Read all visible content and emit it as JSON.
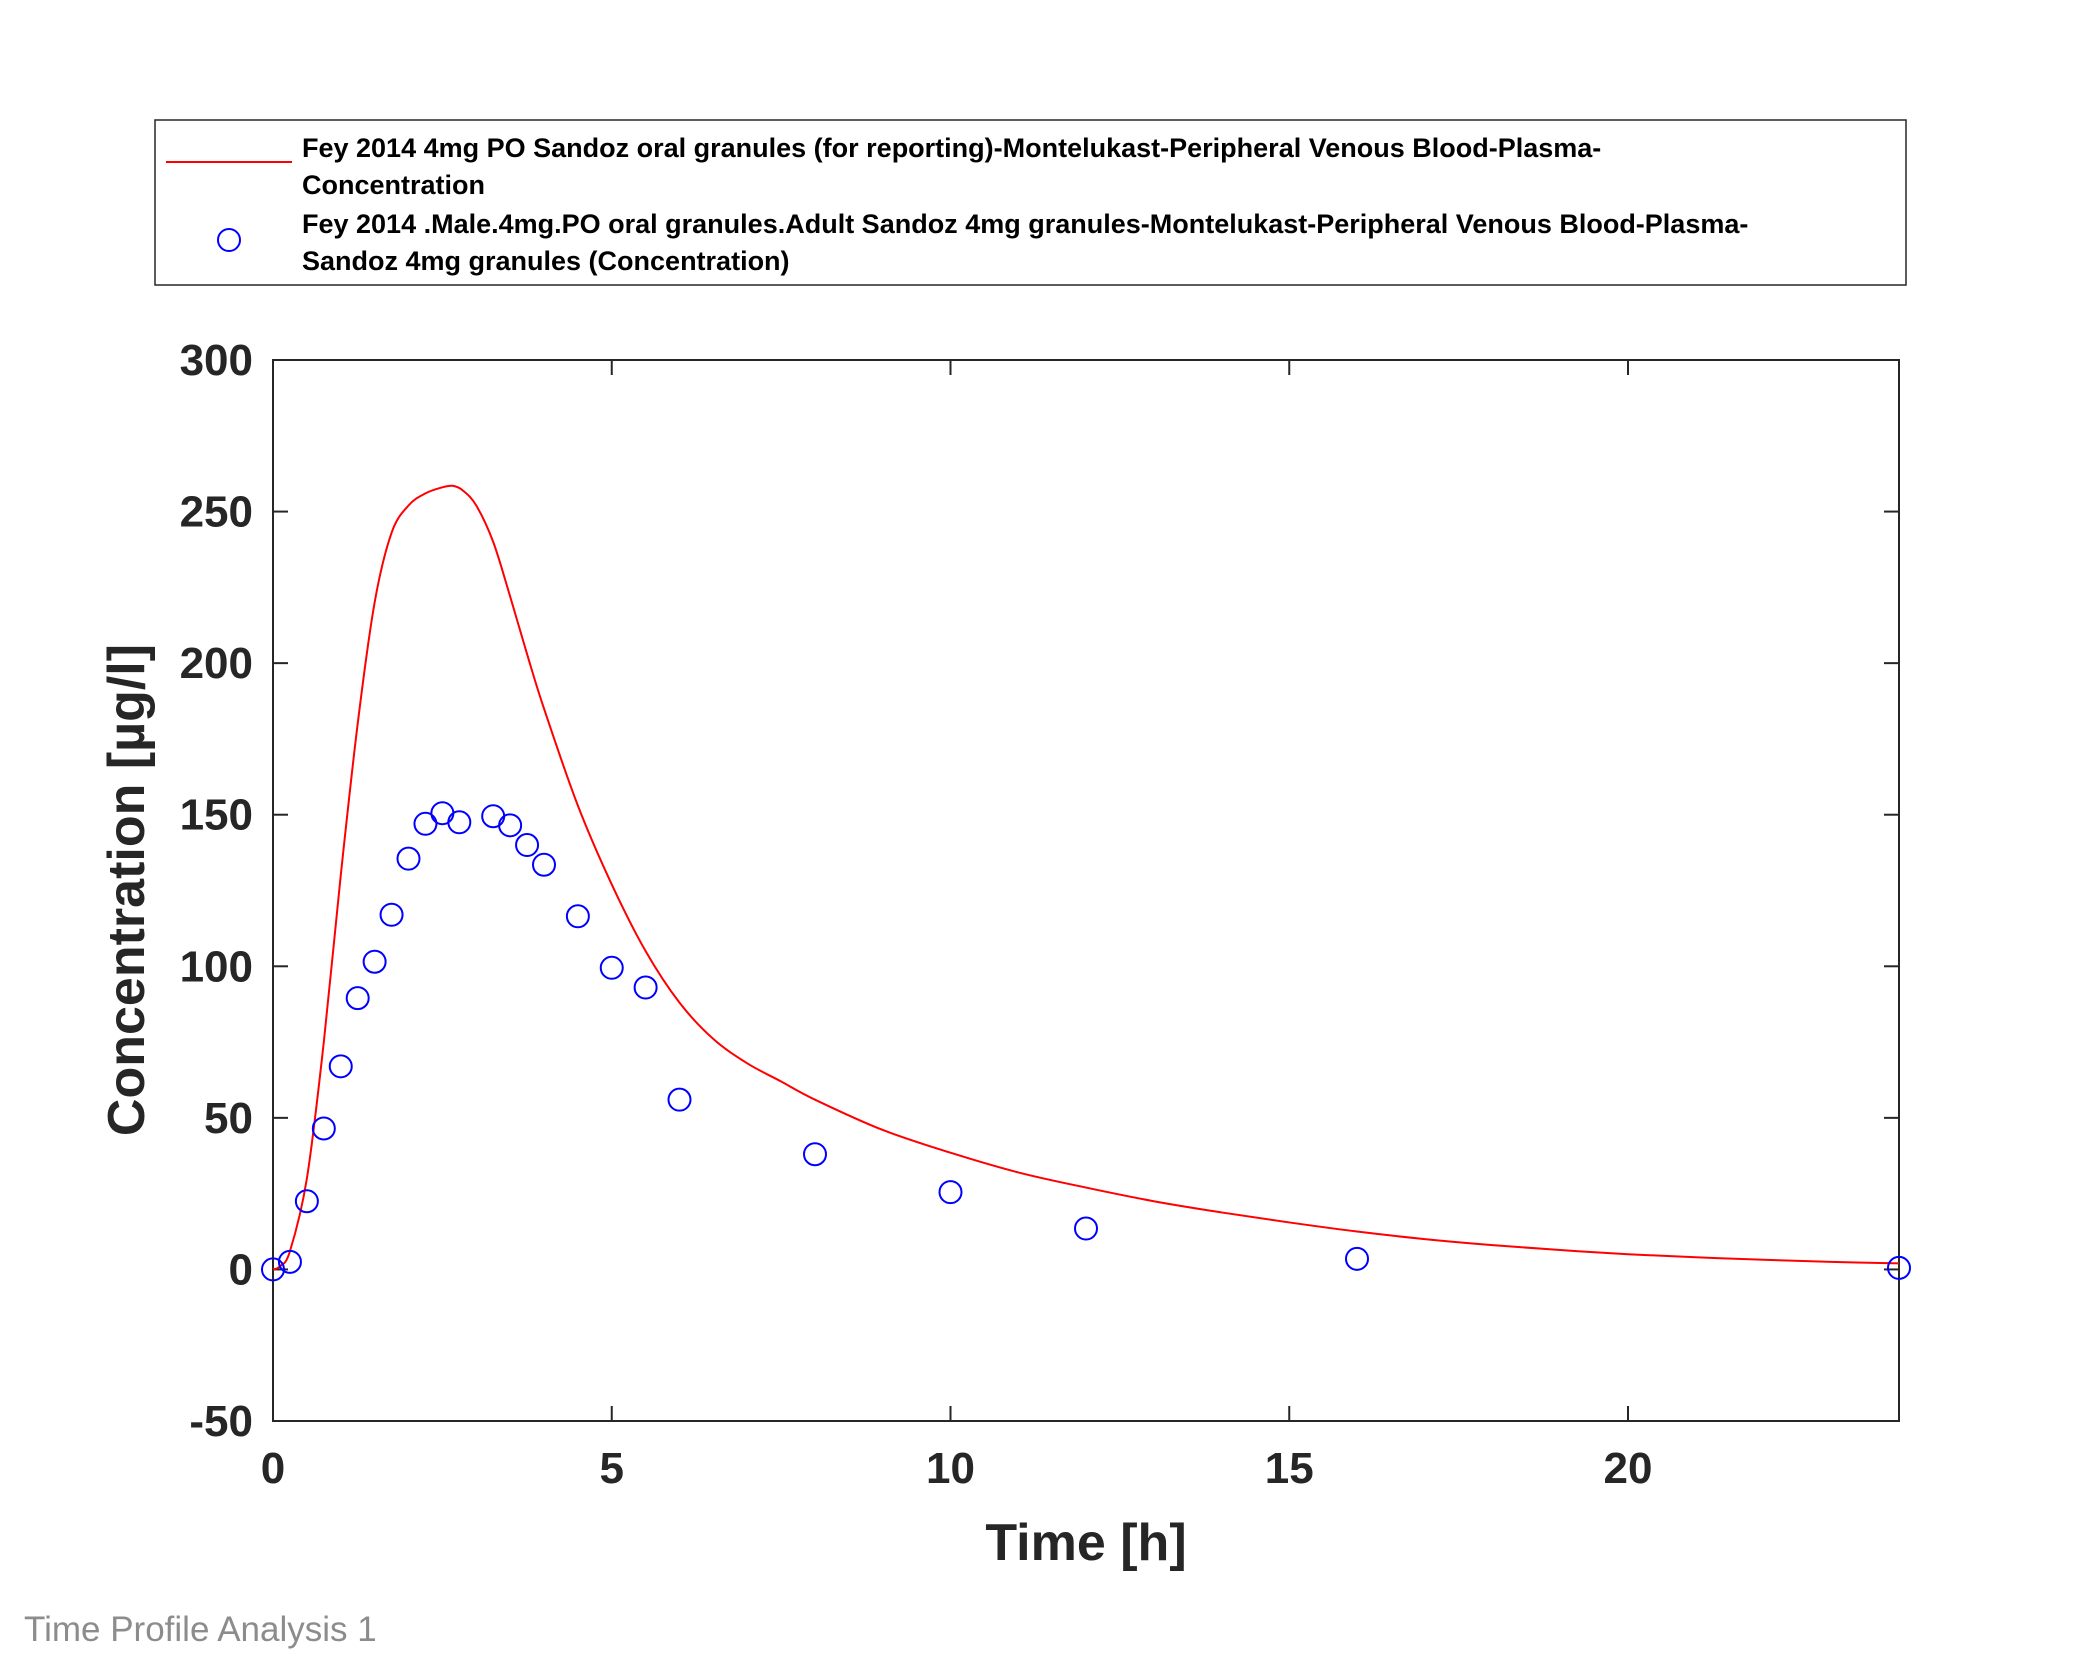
{
  "footer": "Time Profile Analysis 1",
  "chart_data": {
    "type": "line",
    "title": "",
    "xlabel": "Time [h]",
    "ylabel": "Concentration [µg/l]",
    "xlim": [
      0,
      24
    ],
    "ylim": [
      -50,
      300
    ],
    "xticks": [
      0,
      5,
      10,
      15,
      20
    ],
    "yticks": [
      -50,
      0,
      50,
      100,
      150,
      200,
      250,
      300
    ],
    "grid": false,
    "legend_position": "above plot",
    "series": [
      {
        "name_lines": [
          "Fey 2014 4mg PO Sandoz oral granules (for reporting)-Montelukast-Peripheral Venous Blood-Plasma-",
          "Concentration"
        ],
        "style": "line",
        "color": "#ff0000",
        "x": [
          0,
          0.1,
          0.25,
          0.5,
          0.75,
          1,
          1.25,
          1.5,
          1.75,
          2,
          2.25,
          2.5,
          2.65,
          2.8,
          3,
          3.25,
          3.5,
          3.75,
          4,
          4.5,
          5,
          5.5,
          6,
          6.5,
          7,
          7.5,
          8,
          9,
          10,
          11,
          12,
          13,
          14,
          15,
          16,
          17,
          18,
          19,
          20,
          21,
          22,
          23,
          24
        ],
        "y": [
          0,
          1,
          6,
          30,
          75,
          130,
          180,
          220,
          243,
          252,
          256,
          258,
          258.5,
          257,
          252,
          240,
          222,
          203,
          185,
          153,
          127,
          105,
          88,
          76,
          68,
          62,
          56,
          46,
          38.5,
          32,
          27,
          22.5,
          18.8,
          15.5,
          12.5,
          10,
          8,
          6.4,
          5,
          4,
          3.2,
          2.5,
          2
        ]
      },
      {
        "name_lines": [
          "Fey 2014 .Male.4mg.PO oral granules.Adult Sandoz  4mg granules-Montelukast-Peripheral Venous Blood-Plasma-",
          "Sandoz 4mg granules (Concentration)"
        ],
        "style": "markers",
        "marker": "circle",
        "color": "#0000ff",
        "x": [
          0,
          0.25,
          0.5,
          0.75,
          1,
          1.25,
          1.5,
          1.75,
          2,
          2.25,
          2.5,
          2.75,
          3.25,
          3.5,
          3.75,
          4,
          4.5,
          5,
          5.5,
          6,
          8,
          10,
          12,
          16,
          24
        ],
        "y": [
          0,
          2.5,
          22.5,
          46.5,
          67,
          89.5,
          101.5,
          117,
          135.5,
          147,
          150.5,
          147.5,
          149.5,
          146.5,
          140,
          133.5,
          116.5,
          99.5,
          93,
          56,
          38,
          25.5,
          13.5,
          3.5,
          0.5
        ]
      }
    ]
  }
}
